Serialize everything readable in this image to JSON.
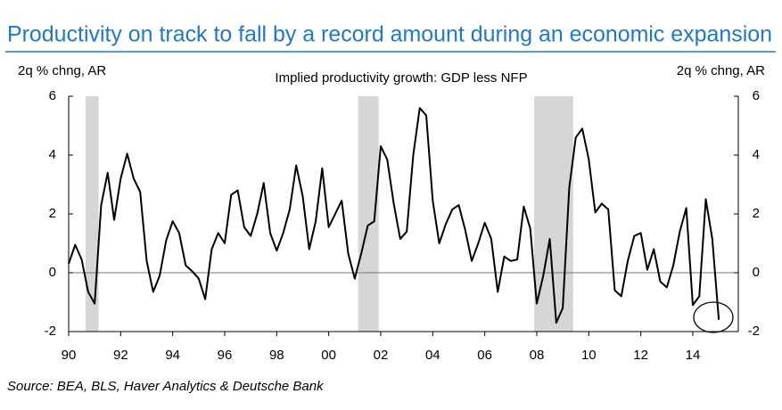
{
  "chart_data": {
    "type": "line",
    "title": "Productivity on track to fall by a record amount during an economic expansion",
    "subtitle": "Implied productivity growth: GDP less NFP",
    "y_label": "2q % chng, AR",
    "y2_label": "2q % chng, AR",
    "source": "Source: BEA, BLS, Haver Analytics & Deutsche Bank",
    "xlim": [
      1990,
      2015.75
    ],
    "xticks": [
      {
        "value": 1990,
        "label": "90"
      },
      {
        "value": 1992,
        "label": "92"
      },
      {
        "value": 1994,
        "label": "94"
      },
      {
        "value": 1996,
        "label": "96"
      },
      {
        "value": 1998,
        "label": "98"
      },
      {
        "value": 2000,
        "label": "00"
      },
      {
        "value": 2002,
        "label": "02"
      },
      {
        "value": 2004,
        "label": "04"
      },
      {
        "value": 2006,
        "label": "06"
      },
      {
        "value": 2008,
        "label": "08"
      },
      {
        "value": 2010,
        "label": "10"
      },
      {
        "value": 2012,
        "label": "12"
      },
      {
        "value": 2014,
        "label": "14"
      }
    ],
    "ylim": [
      -2,
      6
    ],
    "yticks": [
      -2,
      0,
      2,
      4,
      6
    ],
    "y2lim": [
      -2,
      6
    ],
    "y2ticks": [
      -2,
      0,
      2,
      4,
      6
    ],
    "recessions": [
      [
        1990.65,
        1991.15
      ],
      [
        2001.13,
        2001.92
      ],
      [
        2007.9,
        2009.4
      ]
    ],
    "recession_color": "#d6d6d6",
    "series": [
      {
        "color": "#000000",
        "x": [
          1990,
          1990.25,
          1990.5,
          1990.75,
          1991,
          1991.25,
          1991.5,
          1991.75,
          1992,
          1992.25,
          1992.5,
          1992.75,
          1993,
          1993.25,
          1993.5,
          1993.75,
          1994,
          1994.25,
          1994.5,
          1994.75,
          1995,
          1995.25,
          1995.5,
          1995.75,
          1996,
          1996.25,
          1996.5,
          1996.75,
          1997,
          1997.25,
          1997.5,
          1997.75,
          1998,
          1998.25,
          1998.5,
          1998.75,
          1999,
          1999.25,
          1999.5,
          1999.75,
          2000,
          2000.25,
          2000.5,
          2000.75,
          2001,
          2001.25,
          2001.5,
          2001.75,
          2002,
          2002.25,
          2002.5,
          2002.75,
          2003,
          2003.25,
          2003.5,
          2003.75,
          2004,
          2004.25,
          2004.5,
          2004.75,
          2005,
          2005.25,
          2005.5,
          2005.75,
          2006,
          2006.25,
          2006.5,
          2006.75,
          2007,
          2007.25,
          2007.5,
          2007.75,
          2008,
          2008.25,
          2008.5,
          2008.75,
          2009,
          2009.25,
          2009.5,
          2009.75,
          2010,
          2010.25,
          2010.5,
          2010.75,
          2011,
          2011.25,
          2011.5,
          2011.75,
          2012,
          2012.25,
          2012.5,
          2012.75,
          2013,
          2013.25,
          2013.5,
          2013.75,
          2014,
          2014.25,
          2014.5,
          2014.75,
          2015
        ],
        "values": [
          0.3,
          0.95,
          0.45,
          -0.65,
          -1.05,
          2.3,
          3.4,
          1.8,
          3.2,
          4.05,
          3.2,
          2.75,
          0.4,
          -0.65,
          -0.1,
          1.1,
          1.75,
          1.35,
          0.25,
          0.05,
          -0.2,
          -0.9,
          0.8,
          1.35,
          1.0,
          2.65,
          2.8,
          1.55,
          1.25,
          2.0,
          3.05,
          1.35,
          0.75,
          1.35,
          2.15,
          3.65,
          2.6,
          0.8,
          1.75,
          3.55,
          1.55,
          2.0,
          2.45,
          0.65,
          -0.2,
          0.65,
          1.6,
          1.75,
          4.3,
          3.85,
          2.35,
          1.15,
          1.4,
          4.0,
          5.6,
          5.35,
          2.45,
          1.0,
          1.65,
          2.15,
          2.3,
          1.45,
          0.4,
          1.0,
          1.7,
          1.15,
          -0.65,
          0.55,
          0.4,
          0.45,
          2.25,
          1.5,
          -1.05,
          -0.1,
          1.15,
          -1.7,
          -1.2,
          2.9,
          4.6,
          4.9,
          3.85,
          2.05,
          2.35,
          2.15,
          -0.6,
          -0.8,
          0.4,
          1.25,
          1.35,
          0.1,
          0.8,
          -0.3,
          -0.5,
          0.25,
          1.4,
          2.2,
          -1.1,
          -0.8,
          2.5,
          1.15,
          -1.6
        ]
      }
    ]
  }
}
